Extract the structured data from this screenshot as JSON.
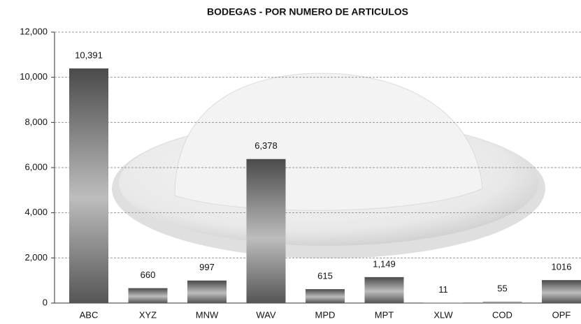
{
  "chart_data": {
    "type": "bar",
    "title": "BODEGAS  - POR NUMERO DE ARTICULOS",
    "categories": [
      "ABC",
      "XYZ",
      "MNW",
      "WAV",
      "MPD",
      "MPT",
      "XLW",
      "COD",
      "OPF"
    ],
    "values": [
      10391,
      660,
      997,
      6378,
      615,
      1149,
      11,
      55,
      1016
    ],
    "value_labels": [
      "10,391",
      "660",
      "997",
      "6,378",
      "615",
      "1,149",
      "11",
      "55",
      "1016"
    ],
    "color": "#7a7a7a",
    "ylim": [
      0,
      12000
    ],
    "yticks": [
      0,
      {
        "value": 2000,
        "label": "2,000"
      },
      {
        "value": 4000,
        "label": "4,000"
      },
      {
        "value": 6000,
        "label": "6,000"
      },
      {
        "value": 8000,
        "label": "8,000"
      },
      {
        "value": 10000,
        "label": "10,000"
      },
      {
        "value": 12000,
        "label": "12,000"
      }
    ],
    "grid": true
  }
}
